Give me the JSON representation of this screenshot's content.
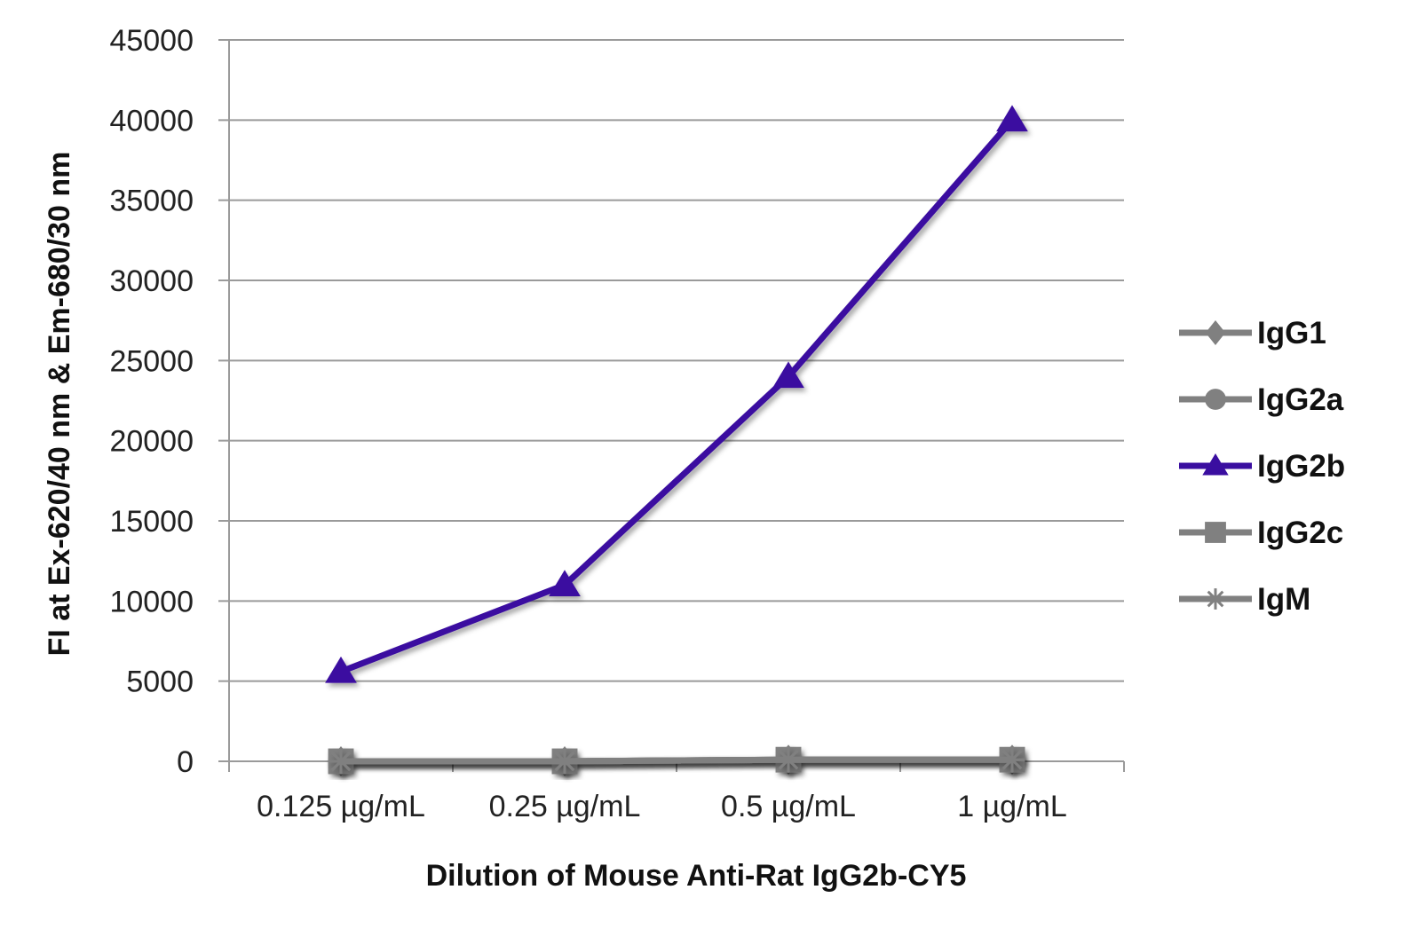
{
  "chart_data": {
    "type": "line",
    "title": "",
    "xlabel": "Dilution of Mouse Anti-Rat IgG2b-CY5",
    "ylabel": "FI at Ex-620/40 nm & Em-680/30 nm",
    "categories": [
      "0.125 µg/mL",
      "0.25 µg/mL",
      "0.5 µg/mL",
      "1 µg/mL"
    ],
    "ylim": [
      0,
      45000
    ],
    "yticks": [
      0,
      5000,
      10000,
      15000,
      20000,
      25000,
      30000,
      35000,
      40000,
      45000
    ],
    "grid": true,
    "legend_position": "right",
    "series": [
      {
        "name": "IgG1",
        "marker": "diamond",
        "color": "#808080",
        "values": [
          0,
          0,
          100,
          100
        ]
      },
      {
        "name": "IgG2a",
        "marker": "circle",
        "color": "#808080",
        "values": [
          0,
          0,
          100,
          100
        ]
      },
      {
        "name": "IgG2b",
        "marker": "triangle",
        "color": "#3a0ea0",
        "values": [
          5600,
          11000,
          24000,
          40000
        ]
      },
      {
        "name": "IgG2c",
        "marker": "square",
        "color": "#808080",
        "values": [
          0,
          0,
          100,
          100
        ]
      },
      {
        "name": "IgM",
        "marker": "star",
        "color": "#808080",
        "values": [
          0,
          0,
          100,
          100
        ]
      }
    ]
  }
}
